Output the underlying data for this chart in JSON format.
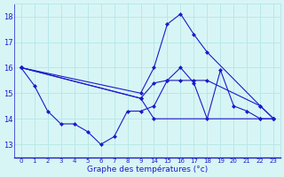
{
  "background_color": "#d8f5f5",
  "grid_color": "#b8e8e8",
  "line_color": "#1a1acc",
  "xlabel": "Graphe des températures (°c)",
  "ylim": [
    12.5,
    18.5
  ],
  "yticks": [
    13,
    14,
    15,
    16,
    17,
    18
  ],
  "series": [
    {
      "xraw": [
        0,
        1,
        2,
        3,
        4,
        5,
        6,
        7,
        8,
        9,
        14,
        15,
        16,
        17,
        18,
        19,
        20,
        21,
        22,
        23
      ],
      "y": [
        16.0,
        15.3,
        14.3,
        13.8,
        13.8,
        13.5,
        13.0,
        13.3,
        14.3,
        14.3,
        14.5,
        15.5,
        16.0,
        15.4,
        14.0,
        15.9,
        14.5,
        14.3,
        14.0,
        14.0
      ]
    },
    {
      "xraw": [
        0,
        9,
        14,
        15,
        16,
        17,
        18,
        22,
        23
      ],
      "y": [
        16.0,
        15.0,
        16.0,
        17.7,
        18.1,
        17.3,
        16.6,
        14.5,
        14.0
      ]
    },
    {
      "xraw": [
        0,
        9,
        14,
        15,
        16,
        17,
        18,
        22,
        23
      ],
      "y": [
        16.0,
        14.8,
        15.4,
        15.5,
        15.5,
        15.5,
        15.5,
        14.5,
        14.0
      ]
    },
    {
      "xraw": [
        0,
        9,
        14,
        22,
        23
      ],
      "y": [
        16.0,
        14.8,
        14.0,
        14.0,
        14.0
      ]
    }
  ],
  "xtick_positions_raw": [
    0,
    1,
    2,
    3,
    4,
    5,
    6,
    7,
    8,
    9,
    14,
    15,
    16,
    17,
    18,
    19,
    20,
    21,
    22,
    23
  ],
  "xtick_labels": [
    "0",
    "1",
    "2",
    "3",
    "4",
    "5",
    "6",
    "7",
    "8",
    "9",
    "14",
    "15",
    "16",
    "17",
    "18",
    "19",
    "20",
    "21",
    "22",
    "23"
  ]
}
